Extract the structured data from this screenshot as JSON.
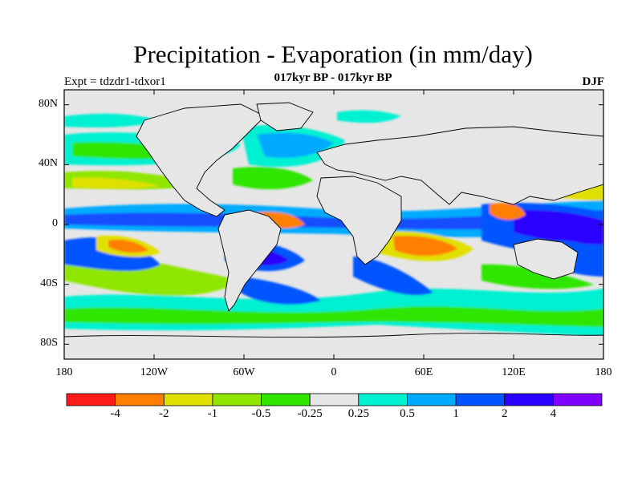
{
  "title": "Precipitation - Evaporation (in mm/day)",
  "subtitle": "017kyr BP - 017kyr BP",
  "left_label": "Expt = tdzdr1-tdxor1",
  "right_label": "DJF",
  "axes": {
    "y_ticks": [
      "80N",
      "40N",
      "0",
      "40S",
      "80S"
    ],
    "x_ticks": [
      "180",
      "120W",
      "60W",
      "0",
      "60E",
      "120E",
      "180"
    ]
  },
  "colorbar": {
    "colors": [
      "#ff1a1a",
      "#ff7f00",
      "#e0e000",
      "#8fe600",
      "#2ee600",
      "#e6e6e6",
      "#00f0d2",
      "#00aaff",
      "#0055ff",
      "#2a00ff",
      "#7f00ff"
    ],
    "labels": [
      "-4",
      "-2",
      "-1",
      "-0.5",
      "-0.25",
      "0.25",
      "0.5",
      "1",
      "2",
      "4"
    ]
  },
  "map_colors": {
    "ocean_default": "#e6e6e6",
    "land": "#e6e6e6",
    "coast": "#000000"
  }
}
